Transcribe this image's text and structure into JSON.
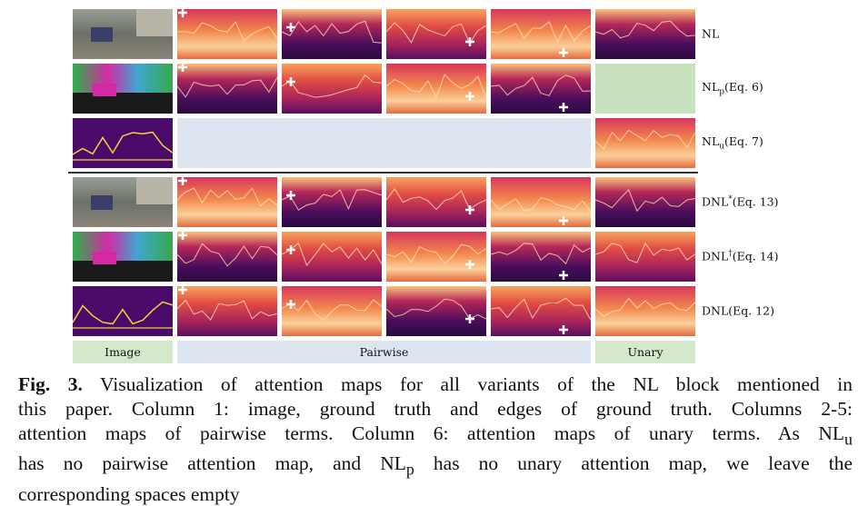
{
  "figure": {
    "row_labels": [
      {
        "base": "NL"
      },
      {
        "base": "NL",
        "sub": "p",
        "rest": "(Eq. 6)"
      },
      {
        "base": "NL",
        "sub": "u",
        "rest": "(Eq. 7)"
      },
      {
        "base": "DNL",
        "sup": "*",
        "rest": "(Eq. 13)"
      },
      {
        "base": "DNL",
        "sup": "†",
        "rest": "(Eq. 14)"
      },
      {
        "base": "DNL",
        "rest": "(Eq. 12)"
      }
    ],
    "column_labels": [
      "Image",
      "Pairwise",
      "Unary"
    ]
  },
  "caption": {
    "label": "Fig. 3.",
    "lines": [
      [
        " Visualization of attention maps for all variants of the NL block mentioned in"
      ],
      [
        "this paper. Column 1: image, ground truth and edges of ground truth. Columns 2-5:"
      ],
      [
        "attention maps of pairwise terms. Column 6: attention maps of unary terms. As ",
        {
          "text": "NL",
          "sub": "u"
        }
      ],
      [
        "has no pairwise attention map, and ",
        {
          "text": "NL",
          "sub": "p"
        },
        " has no unary attention map, we leave the"
      ],
      [
        "corresponding spaces empty"
      ]
    ]
  }
}
